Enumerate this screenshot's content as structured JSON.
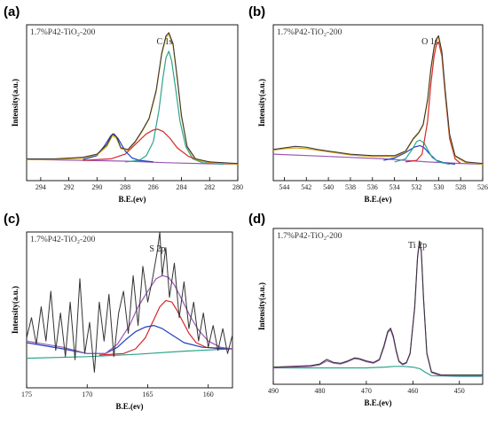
{
  "chart_data": [
    {
      "type": "line",
      "panel": "(a)",
      "sample": "1.7%P42-TiO₂-200",
      "peak_label": "C 1s",
      "xlabel": "B.E.(ev)",
      "ylabel": "Intensity(a.u.)",
      "xlim": [
        295,
        280
      ],
      "xticks": [
        294,
        292,
        290,
        288,
        286,
        284,
        282,
        280
      ],
      "ylim": [
        0,
        1
      ],
      "series": [
        {
          "color": "#333333",
          "x": [
            295,
            293,
            291,
            290,
            289.3,
            288.9,
            288.6,
            288.3,
            287.8,
            287.3,
            286.8,
            286.3,
            285.8,
            285.4,
            285.1,
            284.9,
            284.6,
            284.3,
            284.0,
            283.6,
            283.0,
            282,
            280
          ],
          "y": [
            0.14,
            0.14,
            0.15,
            0.17,
            0.23,
            0.3,
            0.28,
            0.21,
            0.2,
            0.25,
            0.32,
            0.4,
            0.58,
            0.82,
            0.93,
            0.95,
            0.88,
            0.66,
            0.42,
            0.22,
            0.14,
            0.12,
            0.11
          ]
        },
        {
          "color": "#d4a017",
          "x": [
            295,
            293,
            291,
            290,
            289.3,
            288.9,
            288.6,
            288.3,
            287.8,
            287.3,
            286.8,
            286.3,
            285.8,
            285.4,
            285.1,
            284.9,
            284.6,
            284.3,
            284.0,
            283.6,
            283.0,
            282,
            280
          ],
          "y": [
            0.135,
            0.135,
            0.145,
            0.165,
            0.22,
            0.29,
            0.27,
            0.205,
            0.195,
            0.245,
            0.315,
            0.395,
            0.57,
            0.81,
            0.92,
            0.94,
            0.87,
            0.65,
            0.41,
            0.215,
            0.135,
            0.115,
            0.105
          ]
        },
        {
          "color": "#1f3fbf",
          "x": [
            291,
            290,
            289.5,
            289.0,
            288.8,
            288.5,
            288.0,
            287.5,
            287,
            286
          ],
          "y": [
            0.135,
            0.16,
            0.22,
            0.29,
            0.3,
            0.27,
            0.19,
            0.145,
            0.13,
            0.12
          ]
        },
        {
          "color": "#d62728",
          "x": [
            291,
            289,
            288,
            287.2,
            286.5,
            286.0,
            285.7,
            285.3,
            284.8,
            284.3,
            283.5,
            282.5,
            281
          ],
          "y": [
            0.13,
            0.14,
            0.17,
            0.24,
            0.3,
            0.325,
            0.33,
            0.315,
            0.27,
            0.21,
            0.155,
            0.125,
            0.11
          ]
        },
        {
          "color": "#2ca58d",
          "x": [
            288,
            287,
            286.5,
            286.0,
            285.6,
            285.3,
            285.1,
            284.9,
            284.7,
            284.4,
            284.1,
            283.7,
            283.2,
            282.5,
            281
          ],
          "y": [
            0.12,
            0.13,
            0.16,
            0.25,
            0.45,
            0.67,
            0.79,
            0.83,
            0.77,
            0.58,
            0.38,
            0.22,
            0.14,
            0.115,
            0.105
          ]
        },
        {
          "color": "#9b59b6",
          "x": [
            295,
            291,
            288,
            285,
            282,
            280
          ],
          "y": [
            0.135,
            0.13,
            0.125,
            0.115,
            0.108,
            0.105
          ]
        }
      ]
    },
    {
      "type": "line",
      "panel": "(b)",
      "sample": "1.7%P42-TiO₂-200",
      "peak_label": "O 1s",
      "xlabel": "B.E.(ev)",
      "ylabel": "Intensity(a.u.)",
      "xlim": [
        545,
        526
      ],
      "xticks": [
        544,
        542,
        540,
        538,
        536,
        534,
        532,
        530,
        528,
        526
      ],
      "ylim": [
        0,
        1
      ],
      "series": [
        {
          "color": "#333333",
          "x": [
            545,
            544,
            543,
            542,
            541,
            540,
            538,
            536,
            534,
            533,
            532.3,
            531.8,
            531.4,
            531.0,
            530.7,
            530.4,
            530.2,
            530.0,
            529.7,
            529.4,
            529.0,
            528.5,
            527.5,
            526
          ],
          "y": [
            0.2,
            0.21,
            0.22,
            0.215,
            0.2,
            0.19,
            0.17,
            0.16,
            0.16,
            0.19,
            0.27,
            0.31,
            0.36,
            0.52,
            0.72,
            0.86,
            0.91,
            0.93,
            0.83,
            0.58,
            0.3,
            0.16,
            0.12,
            0.11
          ]
        },
        {
          "color": "#d4a017",
          "x": [
            545,
            544,
            543,
            542,
            541,
            540,
            538,
            536,
            534,
            533,
            532.3,
            531.8,
            531.4,
            531.0,
            530.7,
            530.4,
            530.2,
            530.0,
            529.7,
            529.4,
            529.0,
            528.5,
            527.5,
            526
          ],
          "y": [
            0.195,
            0.205,
            0.21,
            0.205,
            0.195,
            0.185,
            0.165,
            0.155,
            0.155,
            0.185,
            0.265,
            0.305,
            0.355,
            0.51,
            0.71,
            0.85,
            0.9,
            0.92,
            0.82,
            0.57,
            0.29,
            0.155,
            0.115,
            0.105
          ]
        },
        {
          "color": "#d62728",
          "x": [
            533,
            532,
            531.5,
            531.0,
            530.7,
            530.4,
            530.2,
            530.0,
            529.7,
            529.4,
            529.0,
            528.5,
            528
          ],
          "y": [
            0.12,
            0.13,
            0.17,
            0.38,
            0.62,
            0.8,
            0.87,
            0.89,
            0.8,
            0.55,
            0.27,
            0.14,
            0.11
          ]
        },
        {
          "color": "#2ca58d",
          "x": [
            534,
            533,
            532.4,
            532.0,
            531.7,
            531.3,
            531.0,
            530.6,
            530,
            529
          ],
          "y": [
            0.12,
            0.14,
            0.2,
            0.25,
            0.26,
            0.24,
            0.2,
            0.15,
            0.12,
            0.105
          ]
        },
        {
          "color": "#1f3fbf",
          "x": [
            535,
            534,
            533,
            532.2,
            531.7,
            531.3,
            530.8,
            530.2,
            529.5,
            528.5
          ],
          "y": [
            0.13,
            0.145,
            0.18,
            0.215,
            0.225,
            0.21,
            0.17,
            0.13,
            0.115,
            0.105
          ]
        },
        {
          "color": "#9b59b6",
          "x": [
            545,
            540,
            535,
            531,
            528,
            526
          ],
          "y": [
            0.17,
            0.155,
            0.14,
            0.12,
            0.11,
            0.105
          ]
        }
      ]
    },
    {
      "type": "line",
      "panel": "(c)",
      "sample": "1.7%P42-TiO₂-200",
      "peak_label": "S 2p",
      "xlabel": "B.E.(ev)",
      "ylabel": "Intensity(a.u.)",
      "xlim": [
        175,
        158
      ],
      "xticks": [
        175,
        170,
        165,
        160
      ],
      "ylim": [
        0,
        1
      ],
      "series": [
        {
          "color": "#333333",
          "x": [
            175,
            174.6,
            174.2,
            173.8,
            173.4,
            173,
            172.6,
            172.2,
            171.8,
            171.4,
            171,
            170.6,
            170.2,
            169.8,
            169.4,
            169,
            168.6,
            168.2,
            167.8,
            167.4,
            167,
            166.6,
            166.2,
            165.8,
            165.4,
            165,
            164.6,
            164.2,
            164,
            163.8,
            163.5,
            163.2,
            162.8,
            162.4,
            162,
            161.6,
            161.2,
            160.8,
            160.4,
            160,
            159.6,
            159.2,
            158.8,
            158.4,
            158
          ],
          "y": [
            0.32,
            0.45,
            0.28,
            0.52,
            0.3,
            0.62,
            0.24,
            0.48,
            0.2,
            0.55,
            0.18,
            0.7,
            0.22,
            0.42,
            0.1,
            0.55,
            0.3,
            0.6,
            0.2,
            0.48,
            0.62,
            0.35,
            0.72,
            0.4,
            0.78,
            0.55,
            0.7,
            0.88,
            1.0,
            0.72,
            0.9,
            0.58,
            0.8,
            0.45,
            0.68,
            0.38,
            0.55,
            0.3,
            0.48,
            0.26,
            0.4,
            0.24,
            0.38,
            0.22,
            0.34
          ]
        },
        {
          "color": "#9b59b6",
          "x": [
            175,
            172,
            170,
            168.5,
            167.5,
            166.5,
            165.8,
            165,
            164.3,
            163.8,
            163.3,
            162.8,
            162.2,
            161.5,
            160.8,
            160,
            159,
            158
          ],
          "y": [
            0.3,
            0.26,
            0.22,
            0.22,
            0.28,
            0.4,
            0.52,
            0.62,
            0.7,
            0.72,
            0.71,
            0.66,
            0.57,
            0.46,
            0.37,
            0.3,
            0.26,
            0.25
          ]
        },
        {
          "color": "#1f3fbf",
          "x": [
            175,
            172,
            170,
            168.5,
            167.5,
            166.8,
            166,
            165.2,
            164.5,
            163.8,
            163,
            162,
            160.5,
            158
          ],
          "y": [
            0.29,
            0.25,
            0.22,
            0.22,
            0.26,
            0.31,
            0.36,
            0.39,
            0.4,
            0.38,
            0.34,
            0.29,
            0.26,
            0.25
          ]
        },
        {
          "color": "#d62728",
          "x": [
            169,
            167,
            166,
            165.2,
            164.6,
            164.0,
            163.5,
            163.0,
            162.6,
            162.2,
            161.6,
            161.0,
            160.2,
            159,
            158
          ],
          "y": [
            0.21,
            0.22,
            0.25,
            0.32,
            0.42,
            0.52,
            0.56,
            0.55,
            0.5,
            0.44,
            0.35,
            0.29,
            0.26,
            0.25,
            0.25
          ]
        },
        {
          "color": "#2ca58d",
          "x": [
            175,
            170,
            166,
            162,
            158
          ],
          "y": [
            0.19,
            0.2,
            0.215,
            0.235,
            0.25
          ]
        }
      ]
    },
    {
      "type": "line",
      "panel": "(d)",
      "sample": "1.7%P42-TiO₂-200",
      "peak_label": "Ti 2p",
      "xlabel": "B.E.(ev)",
      "ylabel": "Intensity(a.u.)",
      "xlim": [
        490,
        445
      ],
      "xticks": [
        490,
        480,
        470,
        460,
        450
      ],
      "ylim": [
        0,
        1
      ],
      "series": [
        {
          "color": "#333333",
          "x": [
            490,
            486,
            482,
            480,
            478.5,
            477,
            475.5,
            474,
            472.5,
            471.5,
            470,
            468.5,
            467.2,
            466.2,
            465.4,
            464.8,
            464.2,
            463.6,
            463,
            462.2,
            461.4,
            460.6,
            459.6,
            459.0,
            458.6,
            458.2,
            457.7,
            457.0,
            456,
            454,
            450,
            445
          ],
          "y": [
            0.11,
            0.115,
            0.12,
            0.13,
            0.16,
            0.14,
            0.135,
            0.15,
            0.17,
            0.165,
            0.15,
            0.14,
            0.16,
            0.25,
            0.34,
            0.36,
            0.31,
            0.22,
            0.15,
            0.13,
            0.14,
            0.2,
            0.5,
            0.82,
            0.92,
            0.86,
            0.55,
            0.2,
            0.08,
            0.06,
            0.06,
            0.06
          ]
        },
        {
          "color": "#9b59b6",
          "x": [
            490,
            486,
            482,
            480,
            478.5,
            477,
            475.5,
            474,
            472.5,
            471.5,
            470,
            468.5,
            467.2,
            466.2,
            465.4,
            464.8,
            464.2,
            463.6,
            463,
            462.2,
            461.4,
            460.6,
            459.6,
            459.0,
            458.6,
            458.2,
            457.7,
            457.0,
            456,
            454,
            450,
            445
          ],
          "y": [
            0.105,
            0.11,
            0.115,
            0.125,
            0.15,
            0.135,
            0.13,
            0.145,
            0.165,
            0.16,
            0.145,
            0.135,
            0.155,
            0.24,
            0.33,
            0.35,
            0.3,
            0.21,
            0.145,
            0.125,
            0.135,
            0.195,
            0.49,
            0.81,
            0.91,
            0.85,
            0.54,
            0.195,
            0.075,
            0.055,
            0.055,
            0.055
          ]
        },
        {
          "color": "#2ca58d",
          "x": [
            490,
            480,
            470,
            466,
            464,
            462,
            460,
            458.5,
            457.5,
            456,
            450,
            445
          ],
          "y": [
            0.105,
            0.105,
            0.105,
            0.11,
            0.115,
            0.115,
            0.11,
            0.1,
            0.08,
            0.055,
            0.05,
            0.05
          ]
        }
      ]
    }
  ]
}
